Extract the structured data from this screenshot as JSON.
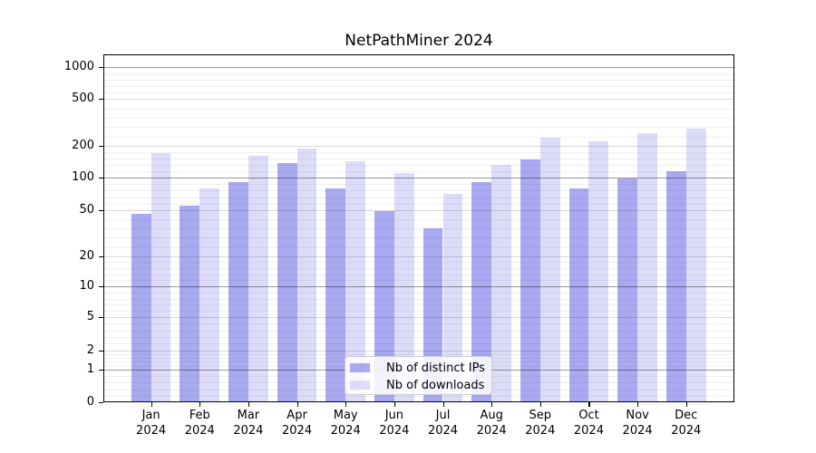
{
  "chart_data": {
    "type": "bar",
    "title": "NetPathMiner 2024",
    "categories": [
      "Jan",
      "Feb",
      "Mar",
      "Apr",
      "May",
      "Jun",
      "Jul",
      "Aug",
      "Sep",
      "Oct",
      "Nov",
      "Dec"
    ],
    "year": "2024",
    "series": [
      {
        "name": "Nb of distinct IPs",
        "color": "#a9a9f1",
        "values": [
          46,
          55,
          91,
          138,
          80,
          49,
          35,
          92,
          148,
          79,
          99,
          115
        ]
      },
      {
        "name": "Nb of downloads",
        "color": "#dcdcf9",
        "values": [
          171,
          79,
          161,
          190,
          143,
          111,
          71,
          133,
          236,
          220,
          258,
          280
        ]
      }
    ],
    "yticks": [
      0,
      1,
      2,
      5,
      10,
      20,
      50,
      100,
      200,
      500,
      1000
    ],
    "xlabel": "",
    "ylabel": "",
    "yscale": "log-like",
    "ylim": [
      0,
      1300
    ],
    "grid": true,
    "legend_position": "lower center"
  },
  "colors": {
    "distinct_ips": "#a9a9f1",
    "downloads": "#dcdcf9",
    "grid_major": "#969696",
    "grid_mid": "#d9d9d9",
    "grid_minor": "#efefef",
    "axis": "#000000",
    "background": "#ffffff"
  }
}
